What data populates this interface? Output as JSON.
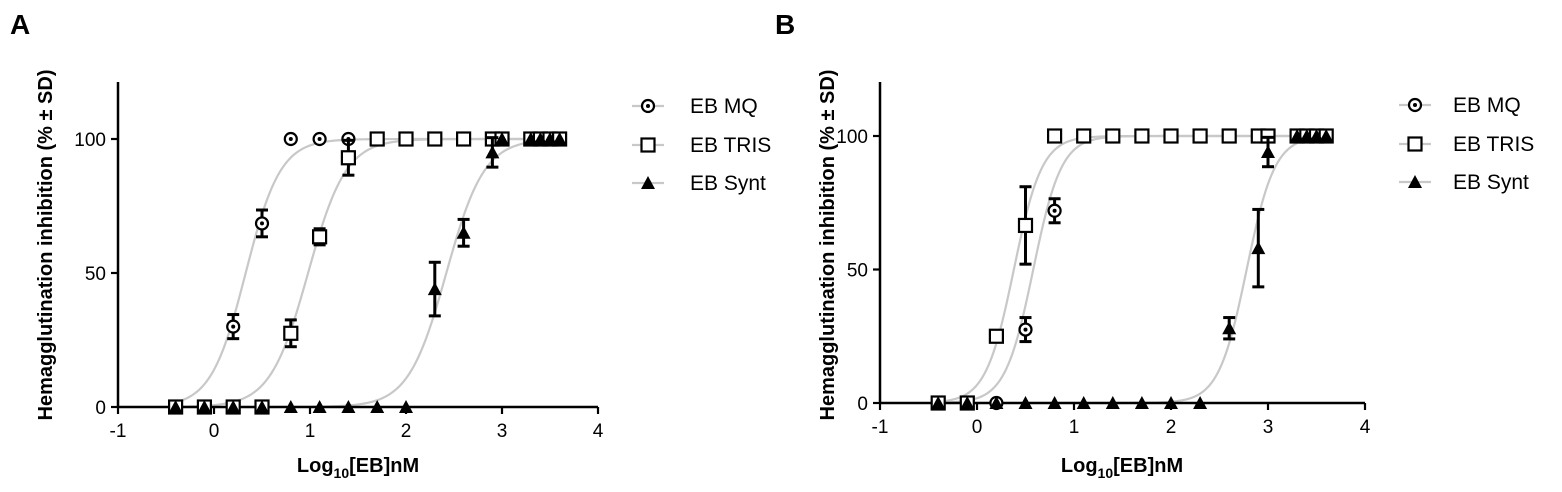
{
  "chart_data": [
    {
      "type": "scatter",
      "panel_label": "A",
      "xlabel": "Log",
      "xlabel_sub": "10",
      "xlabel_tail": "[EB]nM",
      "ylabel": "Hemagglutination inhibition (% ± SD)",
      "xlim": [
        -1,
        4
      ],
      "ylim": [
        0,
        120
      ],
      "xticks": [
        "-1",
        "0",
        "1",
        "2",
        "3",
        "4"
      ],
      "yticks": [
        "0",
        "50",
        "100"
      ],
      "grid": false,
      "legend": "right",
      "series": [
        {
          "name": "EB MQ",
          "marker": "circle-dot",
          "x": [
            -0.4,
            -0.1,
            0.2,
            0.5,
            0.8,
            1.1,
            1.4,
            1.7,
            2.0,
            2.3,
            2.6,
            2.9,
            3.0,
            3.3,
            3.4,
            3.5,
            3.6
          ],
          "y": [
            0,
            0,
            30,
            68.5,
            100,
            100,
            100,
            100,
            100,
            100,
            100,
            100,
            100,
            100,
            100,
            100,
            100
          ],
          "err": [
            0,
            0,
            4.5,
            5,
            0,
            0,
            0,
            0,
            0,
            0,
            0,
            0,
            0,
            0,
            0,
            0,
            0
          ],
          "fit": {
            "top": 100,
            "logEC50": 0.33,
            "hill": 2.4
          }
        },
        {
          "name": "EB TRIS",
          "marker": "square",
          "x": [
            -0.4,
            -0.1,
            0.2,
            0.5,
            0.8,
            1.1,
            1.4,
            1.7,
            2.0,
            2.3,
            2.6,
            2.9,
            3.0,
            3.3,
            3.4,
            3.5,
            3.6
          ],
          "y": [
            0,
            0,
            0,
            0,
            27.5,
            63.5,
            93,
            100,
            100,
            100,
            100,
            100,
            100,
            100,
            100,
            100,
            100
          ],
          "err": [
            0,
            0,
            0,
            0,
            5,
            3,
            6.5,
            0,
            0,
            0,
            0,
            0,
            0,
            0,
            0,
            0,
            0
          ],
          "fit": {
            "top": 100,
            "logEC50": 0.98,
            "hill": 2.2
          }
        },
        {
          "name": "EB Synt",
          "marker": "triangle",
          "x": [
            -0.4,
            -0.1,
            0.2,
            0.5,
            0.8,
            1.1,
            1.4,
            1.7,
            2.0,
            2.3,
            2.6,
            2.9,
            3.0,
            3.3,
            3.4,
            3.5,
            3.6
          ],
          "y": [
            0,
            0,
            0,
            0,
            0,
            0,
            0,
            0,
            0,
            44,
            65,
            95,
            100,
            100,
            100,
            100,
            100
          ],
          "err": [
            0,
            0,
            0,
            0,
            0,
            0,
            0,
            0,
            0,
            10,
            5,
            5.5,
            0,
            0,
            0,
            0,
            0
          ],
          "fit": {
            "top": 100,
            "logEC50": 2.42,
            "hill": 2.2
          }
        }
      ]
    },
    {
      "type": "scatter",
      "panel_label": "B",
      "xlabel": "Log",
      "xlabel_sub": "10",
      "xlabel_tail": "[EB]nM",
      "ylabel": "Hemagglutination inhibition (% ± SD)",
      "xlim": [
        -1,
        4
      ],
      "ylim": [
        0,
        120
      ],
      "xticks": [
        "-1",
        "0",
        "1",
        "2",
        "3",
        "4"
      ],
      "yticks": [
        "0",
        "50",
        "100"
      ],
      "grid": false,
      "legend": "right",
      "series": [
        {
          "name": "EB MQ",
          "marker": "circle-dot",
          "x": [
            -0.4,
            -0.1,
            0.2,
            0.5,
            0.8,
            1.1,
            1.4,
            1.7,
            2.0,
            2.3,
            2.6,
            2.9,
            3.0,
            3.3,
            3.4,
            3.5,
            3.6
          ],
          "y": [
            0,
            0,
            0,
            27.5,
            72,
            100,
            100,
            100,
            100,
            100,
            100,
            100,
            100,
            100,
            100,
            100,
            100
          ],
          "err": [
            0,
            0,
            0,
            4.5,
            4.5,
            0,
            0,
            0,
            0,
            0,
            0,
            0,
            0,
            0,
            0,
            0,
            0
          ],
          "fit": {
            "top": 100,
            "logEC50": 0.58,
            "hill": 3.0
          }
        },
        {
          "name": "EB TRIS",
          "marker": "square",
          "x": [
            -0.4,
            -0.1,
            0.2,
            0.5,
            0.8,
            1.1,
            1.4,
            1.7,
            2.0,
            2.3,
            2.6,
            2.9,
            3.0,
            3.3,
            3.4,
            3.5,
            3.6
          ],
          "y": [
            0,
            0,
            25,
            66.5,
            100,
            100,
            100,
            100,
            100,
            100,
            100,
            100,
            100,
            100,
            100,
            100,
            100
          ],
          "err": [
            0,
            0,
            0,
            14.5,
            0,
            0,
            0,
            0,
            0,
            0,
            0,
            0,
            0,
            0,
            0,
            0,
            0
          ],
          "fit": {
            "top": 100,
            "logEC50": 0.38,
            "hill": 3.0
          }
        },
        {
          "name": "EB Synt",
          "marker": "triangle",
          "x": [
            -0.4,
            -0.1,
            0.2,
            0.5,
            0.8,
            1.1,
            1.4,
            1.7,
            2.0,
            2.3,
            2.6,
            2.9,
            3.0,
            3.3,
            3.4,
            3.5,
            3.6
          ],
          "y": [
            0,
            0,
            0,
            0,
            0,
            0,
            0,
            0,
            0,
            0,
            28,
            58,
            94,
            100,
            100,
            100,
            100
          ],
          "err": [
            0,
            0,
            0,
            0,
            0,
            0,
            0,
            0,
            0,
            0,
            4,
            14.5,
            5.5,
            0,
            0,
            0,
            0
          ],
          "fit": {
            "top": 100,
            "logEC50": 2.78,
            "hill": 3.0
          }
        }
      ]
    }
  ]
}
